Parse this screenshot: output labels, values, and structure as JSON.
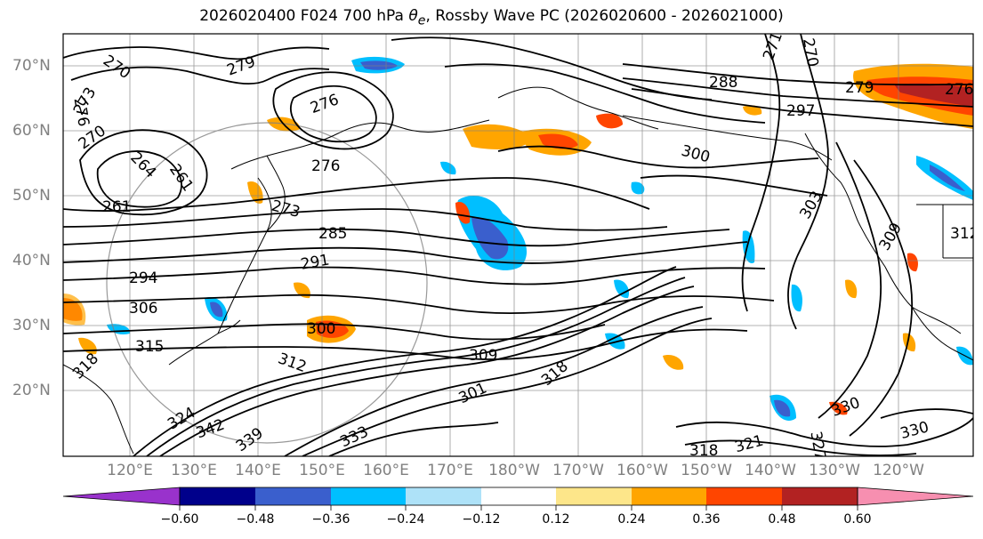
{
  "title": {
    "init": "2026020400",
    "forecast": "F024",
    "level": "700 hPa",
    "variable_symbol": "θ",
    "variable_sub": "e",
    "suffix": ", Rossby Wave PC (2026020600 - 2026021000)"
  },
  "map": {
    "region": "North Pacific",
    "lat_labels": [
      "70°N",
      "60°N",
      "50°N",
      "40°N",
      "30°N",
      "20°N"
    ],
    "lon_labels": [
      "120°E",
      "130°E",
      "140°E",
      "150°E",
      "160°E",
      "170°E",
      "180°W",
      "170°W",
      "160°W",
      "150°W",
      "140°W",
      "130°W",
      "120°W"
    ],
    "contour_labels": [
      "270",
      "279",
      "276",
      "273",
      "276",
      "270",
      "264",
      "261",
      "261",
      "276",
      "273",
      "285",
      "291",
      "294",
      "306",
      "300",
      "315",
      "318",
      "312",
      "309",
      "301",
      "318",
      "324",
      "342",
      "339",
      "333",
      "330",
      "318",
      "321",
      "327",
      "330",
      "288",
      "297",
      "300",
      "303",
      "309",
      "312",
      "271",
      "270",
      "279",
      "276"
    ],
    "colors": {
      "ocean_bg": "#ffffff",
      "contour": "#000000",
      "grid": "#808080",
      "coast": "#000000"
    }
  },
  "colorbar": {
    "ticks": [
      "−0.60",
      "−0.48",
      "−0.36",
      "−0.24",
      "−0.12",
      "0.12",
      "0.24",
      "0.36",
      "0.48",
      "0.60"
    ],
    "colors": [
      "#9932cc",
      "#00008b",
      "#3a5fcd",
      "#00bfff",
      "#aee2f8",
      "#ffffff",
      "#fde68a",
      "#ffa500",
      "#ff4500",
      "#b22222",
      "#f78fb0"
    ]
  }
}
